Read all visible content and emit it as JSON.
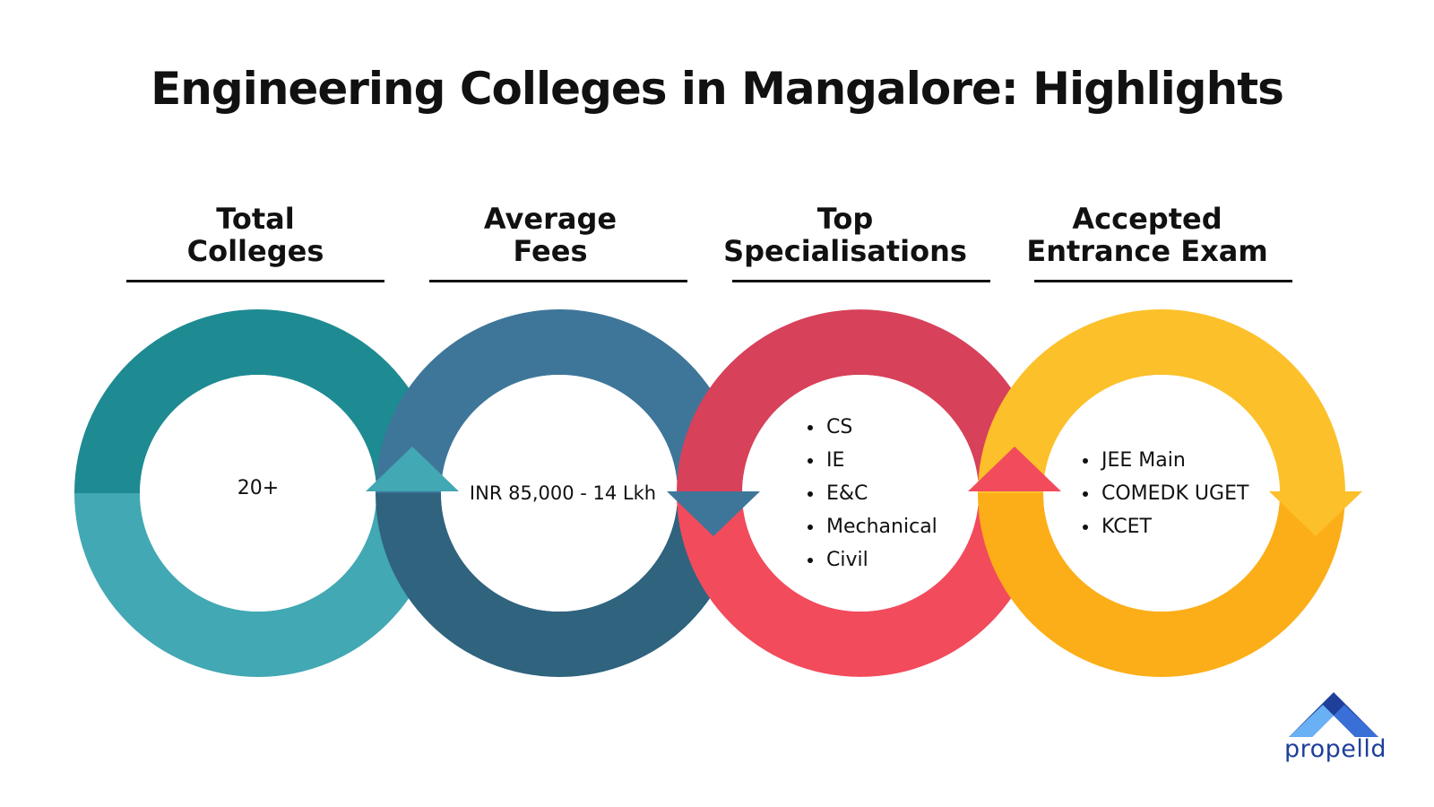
{
  "title": "Engineering Colleges in Mangalore: Highlights",
  "columns": [
    {
      "heading_line1": "Total",
      "heading_line2": "Colleges",
      "value": "20+",
      "color_top": "#1e8a92",
      "color_bottom": "#42a8b3"
    },
    {
      "heading_line1": "Average",
      "heading_line2": "Fees",
      "value": "INR 85,000 - 14 Lkh",
      "color_top": "#3e7699",
      "color_bottom": "#2f637e"
    },
    {
      "heading_line1": "Top",
      "heading_line2": "Specialisations",
      "items": [
        "CS",
        "IE",
        "E&C",
        "Mechanical",
        "Civil"
      ],
      "color_top": "#d7415a",
      "color_bottom": "#f24b5c"
    },
    {
      "heading_line1": "Accepted",
      "heading_line2": "Entrance Exam",
      "items": [
        "JEE Main",
        "COMEDK UGET",
        "KCET"
      ],
      "color_top": "#fcc02a",
      "color_bottom": "#fcae18"
    }
  ],
  "logo": {
    "text": "propelld",
    "color_dark": "#1e3f9a",
    "color_mid": "#3a6fd8",
    "color_light": "#6ab0f5"
  }
}
